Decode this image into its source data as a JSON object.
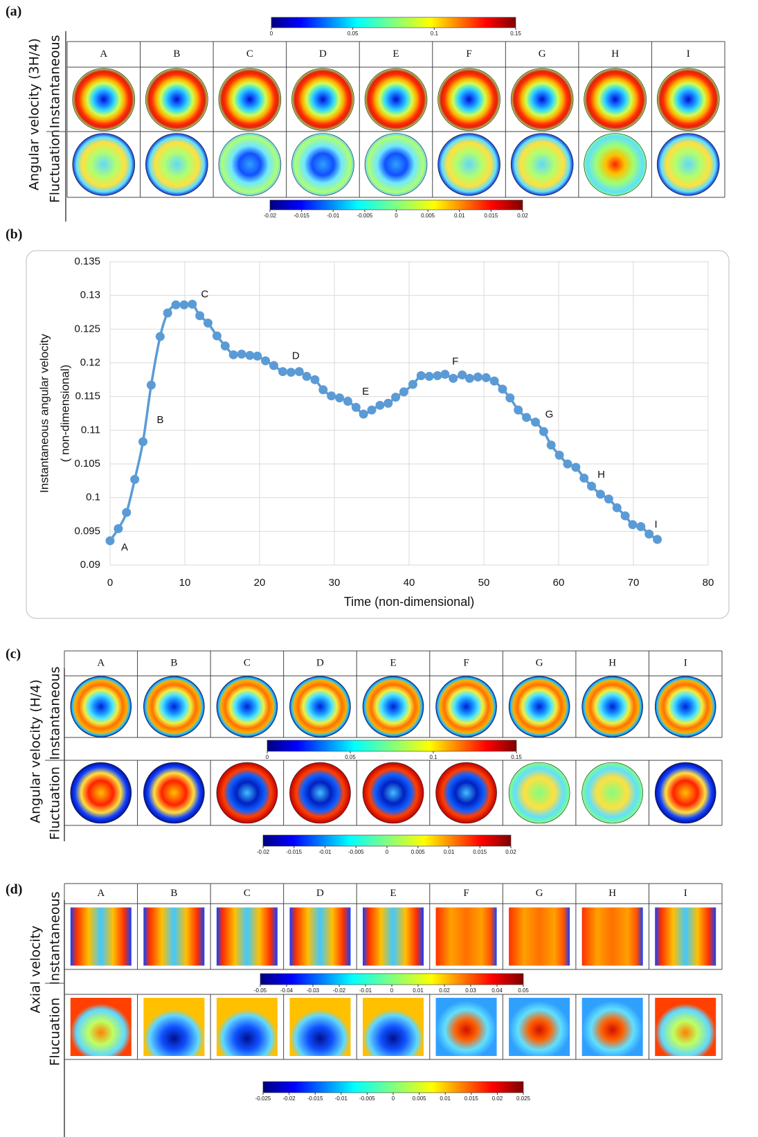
{
  "panels": [
    {
      "label": "(a)",
      "title": "Angular velocity (3H/4)",
      "rows": [
        "Instantaneous",
        "Fluctuation"
      ],
      "columns": [
        "A",
        "B",
        "C",
        "D",
        "E",
        "F",
        "G",
        "H",
        "I"
      ],
      "colorbars": [
        {
          "ticks": [
            0,
            0.05,
            0.1,
            0.15
          ]
        },
        {
          "ticks": [
            -0.02,
            -0.015,
            -0.01,
            -0.005,
            0,
            0.005,
            0.01,
            0.015,
            0.02
          ]
        }
      ]
    },
    {
      "label": "(c)",
      "title": "Angular velocity (H/4)",
      "rows": [
        "Instantaneous",
        "Fluctuation"
      ],
      "columns": [
        "A",
        "B",
        "C",
        "D",
        "E",
        "F",
        "G",
        "H",
        "I"
      ],
      "colorbars": [
        {
          "ticks": [
            0,
            0.05,
            0.1,
            0.15
          ]
        },
        {
          "ticks": [
            -0.02,
            -0.015,
            -0.01,
            -0.005,
            0,
            0.005,
            0.01,
            0.015,
            0.02
          ]
        }
      ]
    },
    {
      "label": "(d)",
      "title": "Axial velocity",
      "rows": [
        "Instantaneous",
        "Flucuation"
      ],
      "columns": [
        "A",
        "B",
        "C",
        "D",
        "E",
        "F",
        "G",
        "H",
        "I"
      ],
      "colorbars": [
        {
          "ticks": [
            -0.05,
            -0.04,
            -0.03,
            -0.02,
            -0.01,
            0,
            0.01,
            0.02,
            0.03,
            0.04,
            0.05
          ]
        },
        {
          "ticks": [
            -0.025,
            -0.02,
            -0.015,
            -0.01,
            -0.005,
            0,
            0.005,
            0.01,
            0.015,
            0.02,
            0.025
          ]
        }
      ]
    }
  ],
  "chart_data": {
    "type": "line",
    "panel_label": "(b)",
    "xlabel": "Time (non-dimensional)",
    "ylabel": [
      "Instantaneous angular  velocity",
      "( non-dimensional)"
    ],
    "annotations": [
      "A",
      "B",
      "C",
      "D",
      "E",
      "F",
      "G",
      "H",
      "I"
    ],
    "x": [
      0,
      1.1,
      2.2,
      3.3,
      4.4,
      5.5,
      6.7,
      7.7,
      8.8,
      9.9,
      11.0,
      12.0,
      13.1,
      14.3,
      15.4,
      16.5,
      17.6,
      18.7,
      19.7,
      20.8,
      21.9,
      23.1,
      24.2,
      25.3,
      26.3,
      27.4,
      28.5,
      29.6,
      30.7,
      31.8,
      32.9,
      33.9,
      35.0,
      36.1,
      37.2,
      38.2,
      39.3,
      40.5,
      41.6,
      42.7,
      43.8,
      44.8,
      45.9,
      47.1,
      48.1,
      49.2,
      50.3,
      51.4,
      52.5,
      53.5,
      54.6,
      55.7,
      56.9,
      58.0,
      59.0,
      60.1,
      61.2,
      62.3,
      63.4,
      64.4,
      65.6,
      66.7,
      67.8,
      68.9,
      69.9,
      71.0,
      72.1,
      73.2
    ],
    "series": [
      {
        "color": "#5b9bd5",
        "values": [
          0.0936,
          0.0954,
          0.0978,
          0.1027,
          0.1083,
          0.1167,
          0.1239,
          0.1274,
          0.1286,
          0.1286,
          0.1287,
          0.127,
          0.1259,
          0.124,
          0.1225,
          0.1212,
          0.1213,
          0.1211,
          0.121,
          0.1203,
          0.1196,
          0.1187,
          0.1186,
          0.1187,
          0.118,
          0.1175,
          0.116,
          0.1151,
          0.1148,
          0.1143,
          0.1134,
          0.1124,
          0.113,
          0.1137,
          0.114,
          0.1149,
          0.1157,
          0.1168,
          0.1181,
          0.118,
          0.1181,
          0.1183,
          0.1177,
          0.1182,
          0.1177,
          0.1179,
          0.1178,
          0.1173,
          0.1161,
          0.1148,
          0.113,
          0.1119,
          0.1112,
          0.1098,
          0.1078,
          0.1063,
          0.105,
          0.1045,
          0.1029,
          0.1017,
          0.1005,
          0.0998,
          0.0985,
          0.0973,
          0.096,
          0.0957,
          0.0946,
          0.0938
        ]
      }
    ],
    "xlim": [
      0,
      80
    ],
    "xticks": [
      0,
      10,
      20,
      30,
      40,
      50,
      60,
      70,
      80
    ],
    "ylim": [
      0.09,
      0.135
    ],
    "yticks": [
      0.09,
      0.095,
      0.1,
      0.105,
      0.11,
      0.115,
      0.12,
      0.125,
      0.13,
      0.135
    ],
    "grid": true
  }
}
